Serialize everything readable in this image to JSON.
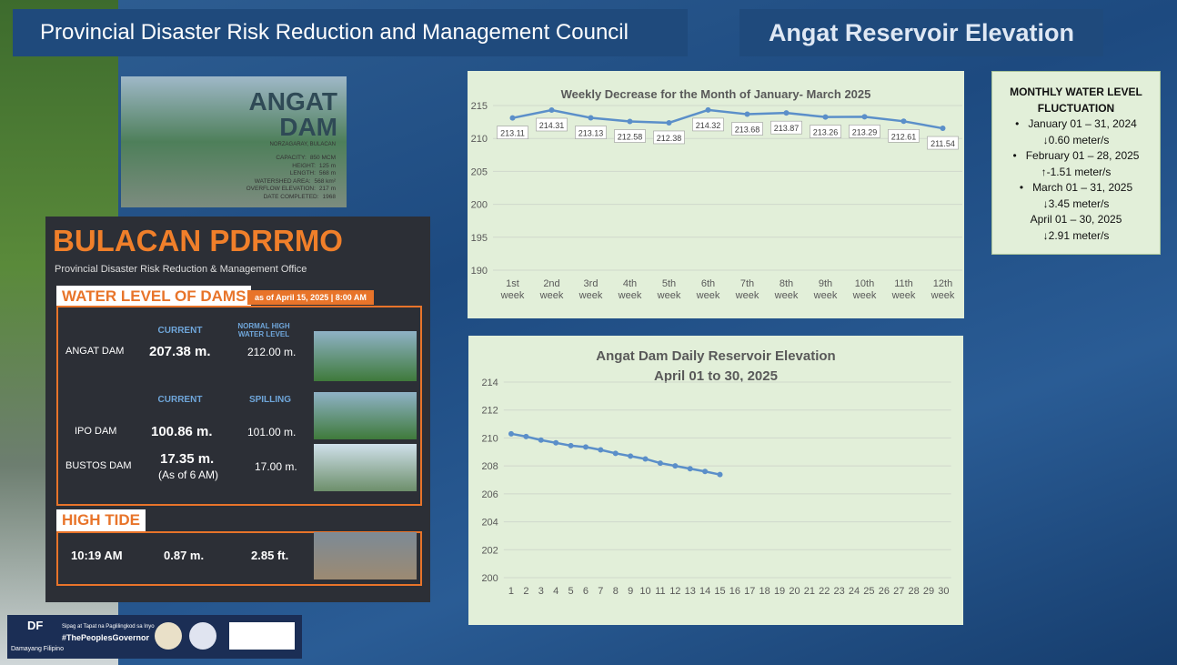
{
  "header": {
    "title": "Provincial Disaster Risk Reduction and Management Council",
    "badge": "Angat Reservoir Elevation"
  },
  "dam_card": {
    "title": "ANGAT DAM",
    "location": "NORZAGARAY, BULACAN",
    "specs": [
      {
        "label": "CAPACITY:",
        "value": "850 MCM"
      },
      {
        "label": "HEIGHT:",
        "value": "125 m"
      },
      {
        "label": "LENGTH:",
        "value": "568 m"
      },
      {
        "label": "WATERSHED AREA:",
        "value": "568 km²"
      },
      {
        "label": "OVERFLOW ELEVATION:",
        "value": "217 m"
      },
      {
        "label": "DATE COMPLETED:",
        "value": "1968"
      }
    ]
  },
  "pdrrmo": {
    "logo": "BULACAN PDRRMO",
    "office": "Provincial Disaster Risk Reduction & Management Office",
    "section": "WATER LEVEL OF DAMS",
    "as_of": "as of April 15, 2025 | 8:00 AM",
    "table1": {
      "headers": [
        "CURRENT",
        "NORMAL HIGH WATER LEVEL"
      ],
      "row": [
        "ANGAT DAM",
        "207.38 m.",
        "212.00 m."
      ]
    },
    "table2": {
      "headers": [
        "CURRENT",
        "SPILLING"
      ],
      "rows": [
        [
          "IPO DAM",
          "100.86 m.",
          "101.00 m."
        ],
        [
          "BUSTOS DAM",
          "17.35 m.",
          "17.00 m."
        ]
      ],
      "note": "(As of 6 AM)"
    },
    "tide": {
      "title": "HIGH TIDE",
      "time": "10:19 AM",
      "meters": "0.87 m.",
      "feet": "2.85 ft."
    }
  },
  "fluctuation": {
    "title": "MONTHLY WATER LEVEL FLUCTUATION",
    "items": [
      {
        "period": "January 01 – 31, 2024",
        "change": "↓0.60 meter/s"
      },
      {
        "period": "February 01 – 28, 2025",
        "change": "↑-1.51 meter/s"
      },
      {
        "period": "March 01 – 31, 2025",
        "change": "↓3.45 meter/s"
      },
      {
        "period": "April 01 – 30, 2025",
        "change": "↓2.91  meter/s"
      }
    ]
  },
  "footer": {
    "logo": "DF",
    "name": "Damayang Filipino",
    "motto": "Sipag at Tapat na Paglilingkod sa Inyo",
    "tag": "#ThePeoplesGovernor"
  },
  "chart_data": [
    {
      "type": "line",
      "title": "Weekly Decrease for the Month of  January- March 2025",
      "categories": [
        "1st week",
        "2nd week",
        "3rd week",
        "4th week",
        "5th week",
        "6th week",
        "7th week",
        "8th week",
        "9th week",
        "10th week",
        "11th week",
        "12th week"
      ],
      "values": [
        213.11,
        214.31,
        213.13,
        212.58,
        212.38,
        214.32,
        213.68,
        213.87,
        213.26,
        213.29,
        212.61,
        211.54
      ],
      "color": "#5b8fc9",
      "ylim": [
        190,
        215
      ],
      "yticks": [
        190,
        195,
        200,
        205,
        210,
        215
      ],
      "grid": true
    },
    {
      "type": "line",
      "title": "Angat Dam Daily Reservoir Elevation",
      "subtitle": "April 01 to 30, 2025",
      "x": [
        1,
        2,
        3,
        4,
        5,
        6,
        7,
        8,
        9,
        10,
        11,
        12,
        13,
        14,
        15,
        16,
        17,
        18,
        19,
        20,
        21,
        22,
        23,
        24,
        25,
        26,
        27,
        28,
        29,
        30
      ],
      "values": [
        210.3,
        210.1,
        209.85,
        209.65,
        209.45,
        209.35,
        209.15,
        208.9,
        208.7,
        208.5,
        208.2,
        208.0,
        207.8,
        207.6,
        207.38,
        null,
        null,
        null,
        null,
        null,
        null,
        null,
        null,
        null,
        null,
        null,
        null,
        null,
        null,
        null
      ],
      "color": "#5b8fc9",
      "xlim": [
        0.5,
        30.5
      ],
      "ylim": [
        200,
        214
      ],
      "yticks": [
        200,
        202,
        204,
        206,
        208,
        210,
        212,
        214
      ],
      "grid": true
    }
  ]
}
